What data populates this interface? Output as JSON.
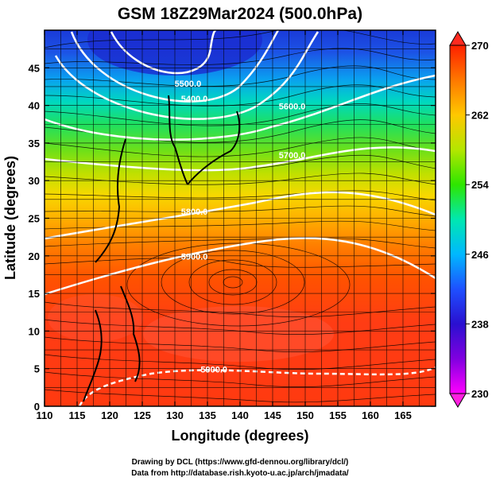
{
  "title": "GSM 18Z29Mar2024 (500.0hPa)",
  "map": {
    "x_axis": {
      "label": "Longitude (degrees)",
      "range": [
        110,
        170
      ],
      "ticks": [
        110,
        115,
        120,
        125,
        130,
        135,
        140,
        145,
        150,
        155,
        160,
        165
      ]
    },
    "y_axis": {
      "label": "Latitude  (degrees)",
      "range": [
        0,
        50
      ],
      "ticks": [
        0,
        5,
        10,
        15,
        20,
        25,
        30,
        35,
        40,
        45
      ]
    },
    "grid": true,
    "variable_shading": "temperature (K)",
    "contour_labels": [
      {
        "text": "5400.0",
        "lon": 133,
        "lat": 40.5
      },
      {
        "text": "5500.0",
        "lon": 132,
        "lat": 42.5
      },
      {
        "text": "5600.0",
        "lon": 148,
        "lat": 39.5
      },
      {
        "text": "5700.0",
        "lon": 148,
        "lat": 33
      },
      {
        "text": "5800.0",
        "lon": 133,
        "lat": 25.5
      },
      {
        "text": "5900.0",
        "lon": 133,
        "lat": 19.5
      },
      {
        "text": "5900.0",
        "lon": 136,
        "lat": 4.5
      }
    ],
    "streamline_vortex": {
      "lon": 140,
      "lat": 15.5
    }
  },
  "colorbar": {
    "min": 230,
    "max": 270,
    "tick_labels": [
      "270",
      "262",
      "254",
      "246",
      "238",
      "230"
    ],
    "colors": [
      "#ff00ff",
      "#3b00d0",
      "#1e3cff",
      "#00b4ff",
      "#00ffc8",
      "#2ee600",
      "#9be600",
      "#ffdc00",
      "#ff8c00",
      "#ff3c00",
      "#ff2800"
    ]
  },
  "credits": {
    "line1": "Drawing by DCL (https://www.gfd-dennou.org/library/dcl/)",
    "line2": "Data from http://database.rish.kyoto-u.ac.jp/arch/jmadata/"
  }
}
